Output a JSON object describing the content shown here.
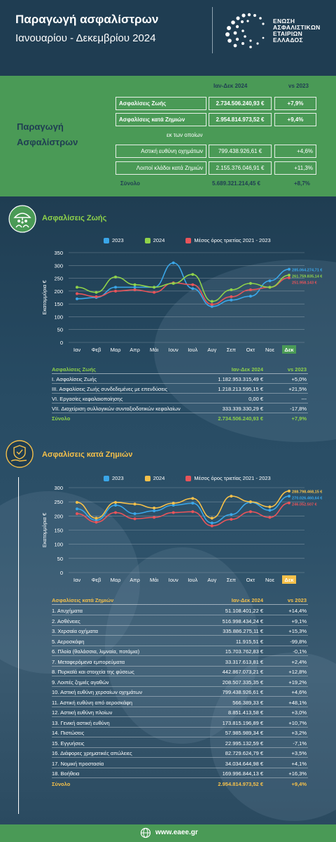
{
  "header": {
    "title": "Παραγωγή ασφαλίστρων",
    "subtitle": "Ιανουαρίου - Δεκεμβρίου 2024",
    "logo_lines": [
      "ΕΝΩΣΗ",
      "ΑΣΦΑΛΙΣΤΙΚΩΝ",
      "ΕΤΑΙΡΙΩΝ",
      "ΕΛΛΑΔΟΣ"
    ]
  },
  "summary": {
    "side_title_1": "Παραγωγή",
    "side_title_2": "Ασφαλίστρων",
    "col_period": "Ιαν-Δεκ 2024",
    "col_vs": "vs 2023",
    "life_label": "Ασφαλίσεις Ζωής",
    "life_value": "2.734.506.240,93 €",
    "life_vs": "+7,9%",
    "nonlife_label": "Ασφαλίσεις κατά Ζημιών",
    "nonlife_value": "2.954.814.973,52 €",
    "nonlife_vs": "+9,4%",
    "of_which": "εκ των οποίων",
    "motor_label": "Αστική ευθύνη οχημάτων",
    "motor_value": "799.438.926,61 €",
    "motor_vs": "+4,6%",
    "other_label": "Λοιποί κλάδοι κατά Ζημιών",
    "other_value": "2.155.376.046,91 €",
    "other_vs": "+11,3%",
    "total_label": "Σύνολο",
    "total_value": "5.689.321.214,45 €",
    "total_vs": "+8,7%"
  },
  "colors": {
    "s2023": "#3aa6e8",
    "s2024_life": "#8fd24a",
    "s2024_nonlife": "#f5c04a",
    "avg": "#e8545a",
    "green": "#4a9a56",
    "navy": "#1f3d52"
  },
  "life_section": {
    "title": "Ασφαλίσεις Ζωής",
    "table_header": [
      "Ασφαλίσεις Ζωής",
      "Ιαν-Δεκ 2024",
      "vs 2023"
    ],
    "rows": [
      [
        "I. Ασφαλίσεις Ζωής",
        "1.182.953.315,49 €",
        "+5,0%"
      ],
      [
        "III. Ασφαλίσεις Ζωής συνδεδεμένες με επενδύσεις",
        "1.218.213.595,15 €",
        "+21,5%"
      ],
      [
        "VI. Εργασίες κεφαλαιοποίησης",
        "0,00 €",
        "---"
      ],
      [
        "VII. Διαχείριση συλλογικών συνταξιοδοτικών κεφαλαίων",
        "333.339.330,29 €",
        "-17,8%"
      ]
    ],
    "total": [
      "Σύνολο",
      "2.734.506.240,93 €",
      "+7,9%"
    ]
  },
  "nonlife_section": {
    "title": "Ασφαλίσεις κατά Ζημιών",
    "table_header": [
      "Ασφαλίσεις κατά Ζημιών",
      "Ιαν-Δεκ 2024",
      "vs 2023"
    ],
    "rows": [
      [
        "1. Ατυχήματα",
        "51.108.401,22 €",
        "+14,4%"
      ],
      [
        "2. Ασθένειες",
        "516.998.434,24 €",
        "+9,1%"
      ],
      [
        "3. Χερσαία οχήματα",
        "335.886.275,11 €",
        "+15,3%"
      ],
      [
        "5. Αεροσκάφη",
        "11.915,51 €",
        "-99,8%"
      ],
      [
        "6. Πλοία (θαλάσσια, λιμναία, ποτάμια)",
        "15.703.762,83 €",
        "-0,1%"
      ],
      [
        "7. Μεταφερόμενα εμπορεύματα",
        "33.317.613,81 €",
        "+2,4%"
      ],
      [
        "8. Πυρκαϊά και στοιχεία της φύσεως",
        "442.867.073,21 €",
        "+12,8%"
      ],
      [
        "9. Λοιπές ζημιές αγαθών",
        "208.507.335,35 €",
        "+19,2%"
      ],
      [
        "10. Αστική ευθύνη χερσαίων οχημάτων",
        "799.438.926,61 €",
        "+4,6%"
      ],
      [
        "11. Αστική ευθύνη από αεροσκάφη",
        "566.389,33 €",
        "+48,1%"
      ],
      [
        "12. Αστική ευθύνη πλοίων",
        "8.851.413,58 €",
        "+3,0%"
      ],
      [
        "13. Γενική αστική ευθύνη",
        "173.815.196,89 €",
        "+10,7%"
      ],
      [
        "14. Πιστώσεις",
        "57.985.989,34 €",
        "+3,2%"
      ],
      [
        "15. Εγγυήσεις",
        "22.995.132,59 €",
        "-7,1%"
      ],
      [
        "16. Διάφορες χρηματικές απώλειες",
        "82.729.624,79 €",
        "+3,5%"
      ],
      [
        "17. Νομική προστασία",
        "34.034.644,98 €",
        "+4,1%"
      ],
      [
        "18. Βοήθεια",
        "169.996.844,13 €",
        "+16,3%"
      ]
    ],
    "total": [
      "Σύνολο",
      "2.954.814.973,52 €",
      "+9,4%"
    ]
  },
  "footer": {
    "url": "www.eaee.gr"
  },
  "chart_data": [
    {
      "type": "line",
      "ylabel": "Εκατομμύρια €",
      "ylim": [
        0,
        350
      ],
      "yticks": [
        0,
        50,
        100,
        150,
        200,
        250,
        300,
        350
      ],
      "categories": [
        "Ιαν",
        "Φεβ",
        "Μαρ",
        "Απρ",
        "Μάι",
        "Ιουν",
        "Ιουλ",
        "Αυγ",
        "Σεπ",
        "Οκτ",
        "Νοε",
        "Δεκ"
      ],
      "highlight_category": "Δεκ",
      "grid": true,
      "legend": "top",
      "series": [
        {
          "name": "2023",
          "values": [
            170,
            175,
            215,
            215,
            215,
            310,
            210,
            140,
            165,
            180,
            240,
            285
          ],
          "end_label": "285.064.274,71 €"
        },
        {
          "name": "2024",
          "values": [
            215,
            195,
            255,
            225,
            215,
            230,
            265,
            160,
            205,
            230,
            215,
            262
          ],
          "end_label": "261.759.835,14 €"
        },
        {
          "name": "Μέσος όρος τριετίας 2021 - 2023",
          "values": [
            190,
            178,
            200,
            205,
            195,
            232,
            225,
            148,
            178,
            205,
            215,
            252
          ],
          "end_label": "251.958.143 €"
        }
      ]
    },
    {
      "type": "line",
      "ylabel": "Εκατομμύρια €",
      "ylim": [
        0,
        300
      ],
      "yticks": [
        0,
        50,
        100,
        150,
        200,
        250,
        300
      ],
      "categories": [
        "Ιαν",
        "Φεβ",
        "Μαρ",
        "Απρ",
        "Μάι",
        "Ιουν",
        "Ιουλ",
        "Αυγ",
        "Σεπ",
        "Οκτ",
        "Νοε",
        "Δεκ"
      ],
      "highlight_category": "Δεκ",
      "grid": true,
      "legend": "top",
      "series": [
        {
          "name": "2023",
          "values": [
            225,
            185,
            238,
            208,
            218,
            238,
            245,
            175,
            205,
            248,
            220,
            270
          ],
          "end_label": "270.026.460,64 €"
        },
        {
          "name": "2024",
          "values": [
            248,
            192,
            248,
            242,
            228,
            245,
            262,
            192,
            270,
            250,
            232,
            288
          ],
          "end_label": "288.798.468,15 €"
        },
        {
          "name": "Μέσος όρος τριετίας 2021 - 2023",
          "values": [
            208,
            178,
            212,
            190,
            195,
            212,
            215,
            165,
            188,
            215,
            195,
            246
          ],
          "end_label": "246.052.507 €"
        }
      ]
    }
  ]
}
